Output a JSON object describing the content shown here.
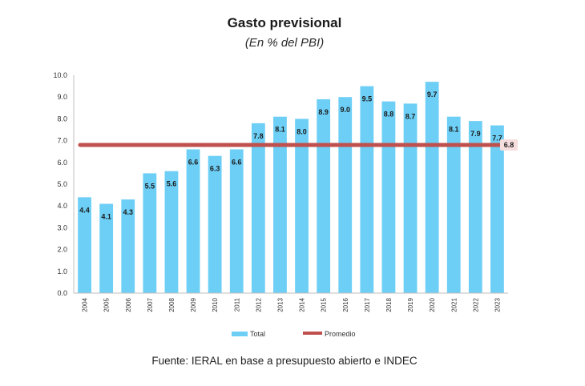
{
  "chart_data": {
    "type": "bar",
    "title": "Gasto previsional",
    "subtitle": "(En % del PBI)",
    "categories": [
      "2004",
      "2005",
      "2006",
      "2007",
      "2008",
      "2009",
      "2010",
      "2011",
      "2012",
      "2013",
      "2014",
      "2015",
      "2016",
      "2017",
      "2018",
      "2019",
      "2020",
      "2021",
      "2022",
      "2023"
    ],
    "series": [
      {
        "name": "Total",
        "type": "bar",
        "color": "#6dcff6",
        "values": [
          4.4,
          4.1,
          4.3,
          5.5,
          5.6,
          6.6,
          6.3,
          6.6,
          7.8,
          8.1,
          8.0,
          8.9,
          9.0,
          9.5,
          8.8,
          8.7,
          9.7,
          8.1,
          7.9,
          7.7
        ]
      },
      {
        "name": "Promedio",
        "type": "line",
        "color": "#c0504d",
        "value": 6.8,
        "label": "6.8"
      }
    ],
    "ylim": [
      0,
      10
    ],
    "yticks": [
      "0.0",
      "1.0",
      "2.0",
      "3.0",
      "4.0",
      "5.0",
      "6.0",
      "7.0",
      "8.0",
      "9.0",
      "10.0"
    ],
    "xlabel": "",
    "ylabel": "",
    "grid": false,
    "legend": "bottom",
    "source": "Fuente: IERAL en base a presupuesto abierto e INDEC"
  }
}
